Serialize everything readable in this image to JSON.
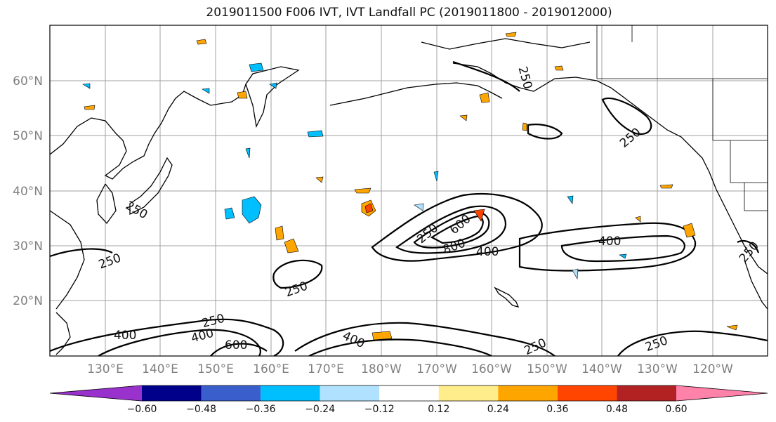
{
  "title": "2019011500 F006 IVT, IVT Landfall PC (2019011800 - 2019012000)",
  "map": {
    "lon_labels": [
      "130°E",
      "140°E",
      "150°E",
      "160°E",
      "170°E",
      "180°W",
      "170°W",
      "160°W",
      "150°W",
      "140°W",
      "130°W",
      "120°W"
    ],
    "lat_labels": [
      "60°N",
      "50°N",
      "40°N",
      "30°N",
      "20°N"
    ],
    "contour_labels": [
      {
        "text": "250"
      },
      {
        "text": "250"
      },
      {
        "text": "250"
      },
      {
        "text": "250"
      },
      {
        "text": "600"
      },
      {
        "text": "800"
      },
      {
        "text": "400"
      },
      {
        "text": "400"
      },
      {
        "text": "250"
      },
      {
        "text": "250"
      },
      {
        "text": "400"
      },
      {
        "text": "400"
      },
      {
        "text": "600"
      },
      {
        "text": "400"
      },
      {
        "text": "250"
      },
      {
        "text": "250"
      },
      {
        "text": "250"
      },
      {
        "text": "250"
      }
    ]
  },
  "colorbar": {
    "colors": [
      "#9932cc",
      "#00008b",
      "#3a5fcd",
      "#00bfff",
      "#b0e2ff",
      "#ffffff",
      "#ffec8b",
      "#ffa500",
      "#ff4500",
      "#b22222",
      "#ff82ab"
    ],
    "tick_labels": [
      "−0.60",
      "−0.48",
      "−0.36",
      "−0.24",
      "−0.12",
      "0.12",
      "0.24",
      "0.36",
      "0.48",
      "0.60"
    ]
  }
}
